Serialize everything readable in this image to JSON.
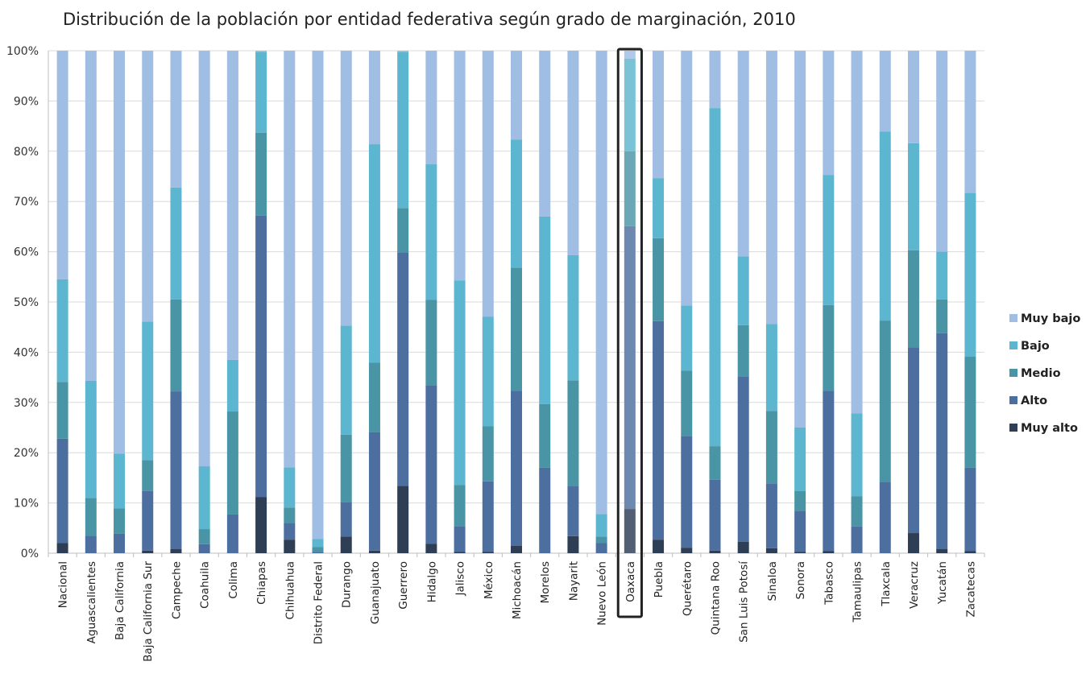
{
  "chart_data": {
    "type": "bar",
    "stacked": true,
    "title": "Distribución de la población por entidad federativa según grado de marginación, 2010",
    "xlabel": "",
    "ylabel": "",
    "ylim": [
      0,
      100
    ],
    "y_ticks": [
      "0%",
      "10%",
      "20%",
      "30%",
      "40%",
      "50%",
      "60%",
      "70%",
      "80%",
      "90%",
      "100%"
    ],
    "grid": true,
    "legend_position": "right",
    "highlighted_category": "Oaxaca",
    "categories": [
      "Nacional",
      "Aguascalientes",
      "Baja California",
      "Baja California Sur",
      "Campeche",
      "Coahuila",
      "Colima",
      "Chiapas",
      "Chihuahua",
      "Distrito Federal",
      "Durango",
      "Guanajuato",
      "Guerrero",
      "Hidalgo",
      "Jalisco",
      "México",
      "Michoacán",
      "Morelos",
      "Nayarit",
      "Nuevo León",
      "Oaxaca",
      "Puebla",
      "Querétaro",
      "Quintana Roo",
      "San Luis Potosí",
      "Sinaloa",
      "Sonora",
      "Tabasco",
      "Tamaulipas",
      "Tlaxcala",
      "Veracruz",
      "Yucatán",
      "Zacatecas"
    ],
    "series": [
      {
        "name": "Muy alto",
        "color": "#2e3e55",
        "values": [
          2.0,
          0.0,
          0.0,
          0.5,
          0.8,
          0.0,
          0.0,
          11.2,
          2.7,
          0.0,
          3.3,
          0.5,
          13.4,
          1.9,
          0.3,
          0.3,
          1.5,
          0.0,
          3.4,
          0.0,
          8.8,
          2.7,
          1.1,
          0.5,
          2.3,
          1.0,
          0.3,
          0.4,
          0.0,
          0.0,
          4.0,
          0.8,
          0.4
        ]
      },
      {
        "name": "Alto",
        "color": "#4d6f9f",
        "values": [
          20.8,
          3.5,
          3.9,
          11.9,
          31.4,
          1.8,
          7.7,
          56.0,
          3.3,
          0.3,
          6.8,
          23.6,
          46.5,
          31.5,
          5.1,
          14.0,
          30.8,
          17.0,
          9.9,
          2.0,
          56.3,
          43.5,
          22.2,
          14.1,
          32.8,
          12.9,
          8.1,
          31.9,
          5.3,
          14.2,
          37.0,
          43.0,
          16.6
        ]
      },
      {
        "name": "Medio",
        "color": "#4a95a5",
        "values": [
          11.3,
          7.5,
          5.0,
          6.1,
          18.3,
          3.0,
          20.5,
          16.5,
          3.1,
          0.9,
          13.5,
          13.8,
          8.8,
          17.0,
          8.2,
          11.0,
          24.5,
          12.7,
          21.1,
          1.3,
          14.9,
          16.5,
          13.0,
          6.7,
          10.3,
          14.4,
          4.0,
          17.1,
          6.0,
          32.1,
          19.3,
          6.7,
          22.1
        ]
      },
      {
        "name": "Bajo",
        "color": "#5db6cf",
        "values": [
          20.4,
          23.3,
          10.9,
          27.6,
          22.3,
          12.5,
          10.3,
          16.1,
          8.0,
          1.6,
          21.7,
          43.5,
          31.1,
          27.0,
          40.7,
          21.8,
          25.5,
          37.3,
          24.9,
          4.5,
          18.4,
          11.9,
          13.0,
          67.3,
          13.7,
          17.3,
          12.6,
          25.9,
          16.5,
          37.6,
          21.3,
          9.5,
          32.6
        ]
      },
      {
        "name": "Muy bajo",
        "color": "#a0bde3",
        "values": [
          45.5,
          65.7,
          80.2,
          53.9,
          27.2,
          82.7,
          61.5,
          0.2,
          82.9,
          97.2,
          54.7,
          18.6,
          0.2,
          22.6,
          45.7,
          52.9,
          17.7,
          33.0,
          40.7,
          92.2,
          1.6,
          25.4,
          50.7,
          11.4,
          40.9,
          54.4,
          75.0,
          24.7,
          72.2,
          16.1,
          18.4,
          40.0,
          28.3
        ]
      }
    ]
  }
}
